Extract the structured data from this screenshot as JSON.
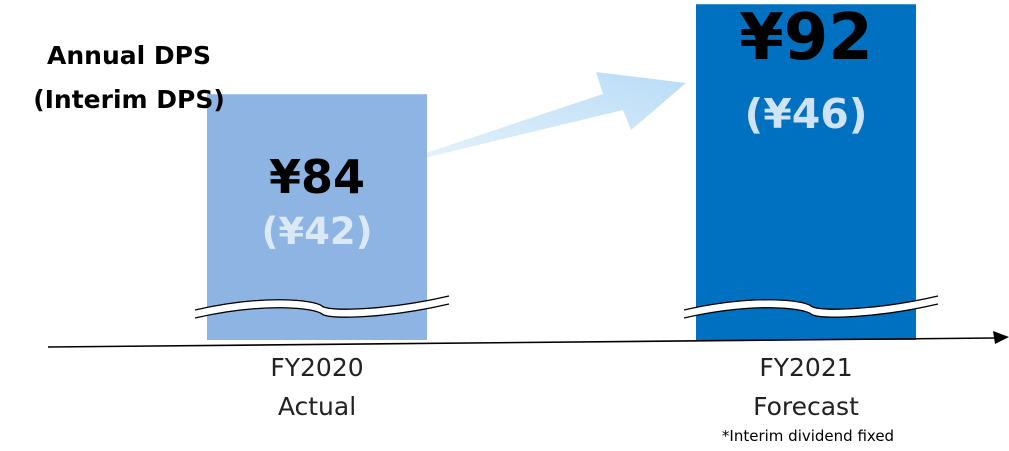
{
  "chart_data": {
    "type": "bar",
    "title_lines": [
      "Annual DPS",
      "(Interim DPS)"
    ],
    "categories": [
      [
        "FY2020",
        "Actual"
      ],
      [
        "FY2021",
        "Forecast"
      ]
    ],
    "series": [
      {
        "values": [
          84,
          92
        ],
        "value_labels": [
          "¥84",
          "¥92"
        ],
        "interim_values": [
          42,
          46
        ],
        "interim_labels": [
          "(¥42)",
          "(¥46)"
        ],
        "colors": [
          "#8eb4e3",
          "#0070c0"
        ],
        "interim_label_colors": [
          "#dbe8f6",
          "#cfe2f6"
        ]
      }
    ],
    "axis_break": true,
    "trend_arrow": true,
    "footnote": "*Interim dividend fixed"
  },
  "colors": {
    "actual_bar": "#8eb4e3",
    "forecast_bar": "#0070c0",
    "arrow": "#c6e2f7",
    "axis": "#000000"
  }
}
